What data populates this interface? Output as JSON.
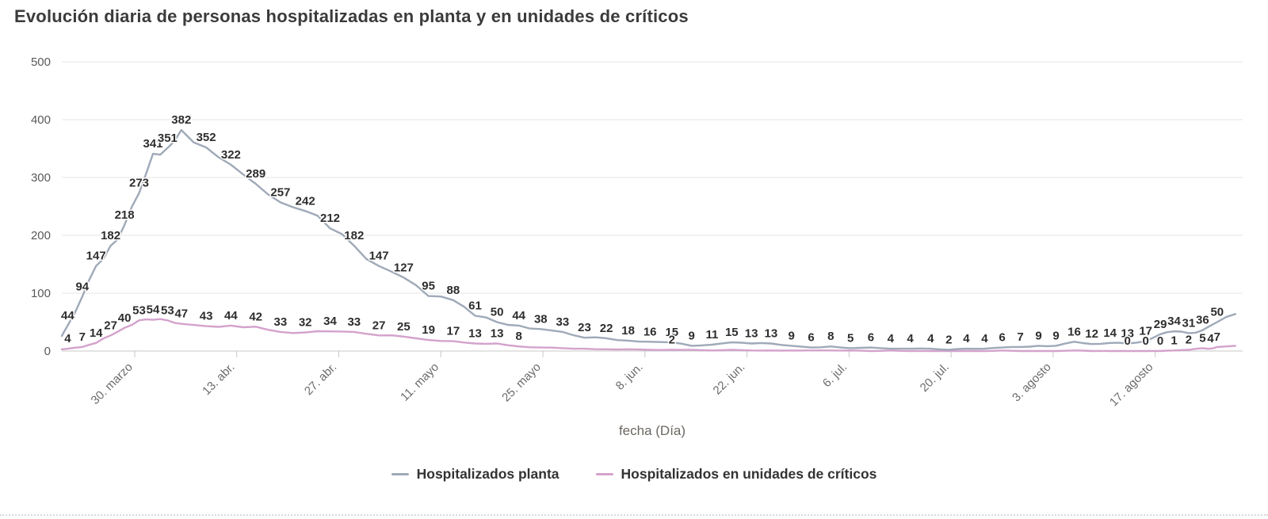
{
  "title": "Evolución diaria de personas hospitalizadas en planta y en unidades de críticos",
  "chart_data": {
    "type": "line",
    "title": "Evolución diaria de personas hospitalizadas en planta y en unidades de críticos",
    "xlabel": "fecha (Día)",
    "ylabel": "",
    "ylim": [
      0,
      500
    ],
    "yticks": [
      0,
      100,
      200,
      300,
      400,
      500
    ],
    "x_domain_days": [
      0,
      162
    ],
    "grid": true,
    "legend_position": "bottom",
    "axis_color": "#c8c8c8",
    "gridline_color": "#e6e6e6",
    "label_color": "#2d2d2d",
    "xticks": [
      {
        "day": 10,
        "label": "30. marzo"
      },
      {
        "day": 24,
        "label": "13. abr."
      },
      {
        "day": 38,
        "label": "27. abr."
      },
      {
        "day": 52,
        "label": "11. mayo"
      },
      {
        "day": 66,
        "label": "25. mayo"
      },
      {
        "day": 80,
        "label": "8. jun."
      },
      {
        "day": 94,
        "label": "22. jun."
      },
      {
        "day": 108,
        "label": "6. jul."
      },
      {
        "day": 122,
        "label": "20. jul."
      },
      {
        "day": 136,
        "label": "3. agosto"
      },
      {
        "day": 150,
        "label": "17. agosto"
      }
    ],
    "series": [
      {
        "name": "Hospitalizados planta",
        "color": "#9fa9b8",
        "points": [
          [
            0,
            26,
            0
          ],
          [
            0.8,
            44,
            1
          ],
          [
            2.8,
            94,
            1
          ],
          [
            4.7,
            147,
            1
          ],
          [
            6.7,
            182,
            1
          ],
          [
            8.6,
            218,
            1
          ],
          [
            10.6,
            273,
            1
          ],
          [
            12.5,
            341,
            1
          ],
          [
            14.5,
            351,
            1
          ],
          [
            16.4,
            382,
            1
          ],
          [
            19.8,
            352,
            1
          ],
          [
            23.2,
            322,
            1
          ],
          [
            26.6,
            289,
            1
          ],
          [
            30,
            257,
            1
          ],
          [
            33.4,
            242,
            1
          ],
          [
            36.8,
            212,
            1
          ],
          [
            40.1,
            182,
            1
          ],
          [
            43.5,
            147,
            1
          ],
          [
            46.9,
            127,
            1
          ],
          [
            50.3,
            95,
            1
          ],
          [
            53.7,
            88,
            1
          ],
          [
            56.7,
            61,
            1
          ],
          [
            59.7,
            50,
            1
          ],
          [
            62.7,
            44,
            1
          ],
          [
            65.7,
            38,
            1
          ],
          [
            68.7,
            33,
            1
          ],
          [
            71.7,
            23,
            1
          ],
          [
            74.7,
            22,
            1
          ],
          [
            77.7,
            18,
            1
          ],
          [
            80.7,
            16,
            1
          ],
          [
            83.7,
            15,
            1
          ],
          [
            86.4,
            9,
            1
          ],
          [
            89.2,
            11,
            1
          ],
          [
            91.9,
            15,
            1
          ],
          [
            94.6,
            13,
            1
          ],
          [
            97.3,
            13,
            1
          ],
          [
            100.1,
            9,
            1
          ],
          [
            102.8,
            6,
            1
          ],
          [
            105.5,
            8,
            1
          ],
          [
            108.2,
            5,
            1
          ],
          [
            111,
            6,
            1
          ],
          [
            113.7,
            4,
            1
          ],
          [
            116.4,
            4,
            1
          ],
          [
            119.2,
            4,
            1
          ],
          [
            121.7,
            2,
            1
          ],
          [
            124.1,
            4,
            1
          ],
          [
            126.6,
            4,
            1
          ],
          [
            129,
            6,
            1
          ],
          [
            131.5,
            7,
            1
          ],
          [
            134,
            9,
            1
          ],
          [
            136.4,
            9,
            1
          ],
          [
            138.9,
            16,
            1
          ],
          [
            141.3,
            12,
            1
          ],
          [
            143.8,
            14,
            1
          ],
          [
            146.2,
            13,
            1
          ],
          [
            148.7,
            17,
            1
          ],
          [
            150.7,
            29,
            1
          ],
          [
            152.6,
            34,
            1
          ],
          [
            154.6,
            31,
            1
          ],
          [
            156.5,
            36,
            1
          ],
          [
            158.5,
            50,
            1
          ],
          [
            161,
            64,
            0
          ]
        ]
      },
      {
        "name": "Hospitalizados en unidades de críticos",
        "color": "#d4a2cc",
        "points": [
          [
            0,
            3,
            0
          ],
          [
            0.8,
            4,
            1
          ],
          [
            2.8,
            7,
            1
          ],
          [
            4.7,
            14,
            1
          ],
          [
            6.7,
            27,
            1
          ],
          [
            8.6,
            40,
            1
          ],
          [
            10.6,
            53,
            1
          ],
          [
            12.5,
            54,
            1
          ],
          [
            14.5,
            53,
            1
          ],
          [
            16.4,
            47,
            1
          ],
          [
            19.8,
            43,
            1
          ],
          [
            23.2,
            44,
            1
          ],
          [
            26.6,
            42,
            1
          ],
          [
            30,
            33,
            1
          ],
          [
            33.4,
            32,
            1
          ],
          [
            36.8,
            34,
            1
          ],
          [
            40.1,
            33,
            1
          ],
          [
            43.5,
            27,
            1
          ],
          [
            46.9,
            25,
            1
          ],
          [
            50.3,
            19,
            1
          ],
          [
            53.7,
            17,
            1
          ],
          [
            56.7,
            13,
            1
          ],
          [
            59.7,
            13,
            1
          ],
          [
            62.7,
            8,
            1
          ],
          [
            65.7,
            6,
            0
          ],
          [
            68.7,
            5,
            0
          ],
          [
            71.7,
            4,
            0
          ],
          [
            74.7,
            3,
            0
          ],
          [
            77.7,
            3,
            0
          ],
          [
            80.7,
            2,
            0
          ],
          [
            83.7,
            2,
            1
          ],
          [
            86.4,
            2,
            0
          ],
          [
            89.2,
            1,
            0
          ],
          [
            91.9,
            2,
            0
          ],
          [
            94.6,
            1,
            0
          ],
          [
            97.3,
            1,
            0
          ],
          [
            100.1,
            1,
            0
          ],
          [
            102.8,
            1,
            0
          ],
          [
            105.5,
            1,
            0
          ],
          [
            108.2,
            1,
            0
          ],
          [
            111,
            0,
            0
          ],
          [
            113.7,
            1,
            0
          ],
          [
            116.4,
            0,
            0
          ],
          [
            119.2,
            0,
            0
          ],
          [
            121.7,
            0,
            0
          ],
          [
            124.1,
            0,
            0
          ],
          [
            126.6,
            0,
            0
          ],
          [
            129,
            1,
            0
          ],
          [
            131.5,
            0,
            0
          ],
          [
            134,
            0,
            0
          ],
          [
            136.4,
            0,
            0
          ],
          [
            138.9,
            1,
            0
          ],
          [
            141.3,
            0,
            0
          ],
          [
            143.8,
            0,
            0
          ],
          [
            146.2,
            0,
            1
          ],
          [
            148.7,
            0,
            1
          ],
          [
            150.7,
            0,
            1
          ],
          [
            152.6,
            1,
            1
          ],
          [
            154.6,
            2,
            1
          ],
          [
            156.5,
            5,
            1
          ],
          [
            157.6,
            4,
            1
          ],
          [
            158.5,
            7,
            1
          ],
          [
            161,
            9,
            0
          ]
        ]
      }
    ]
  }
}
